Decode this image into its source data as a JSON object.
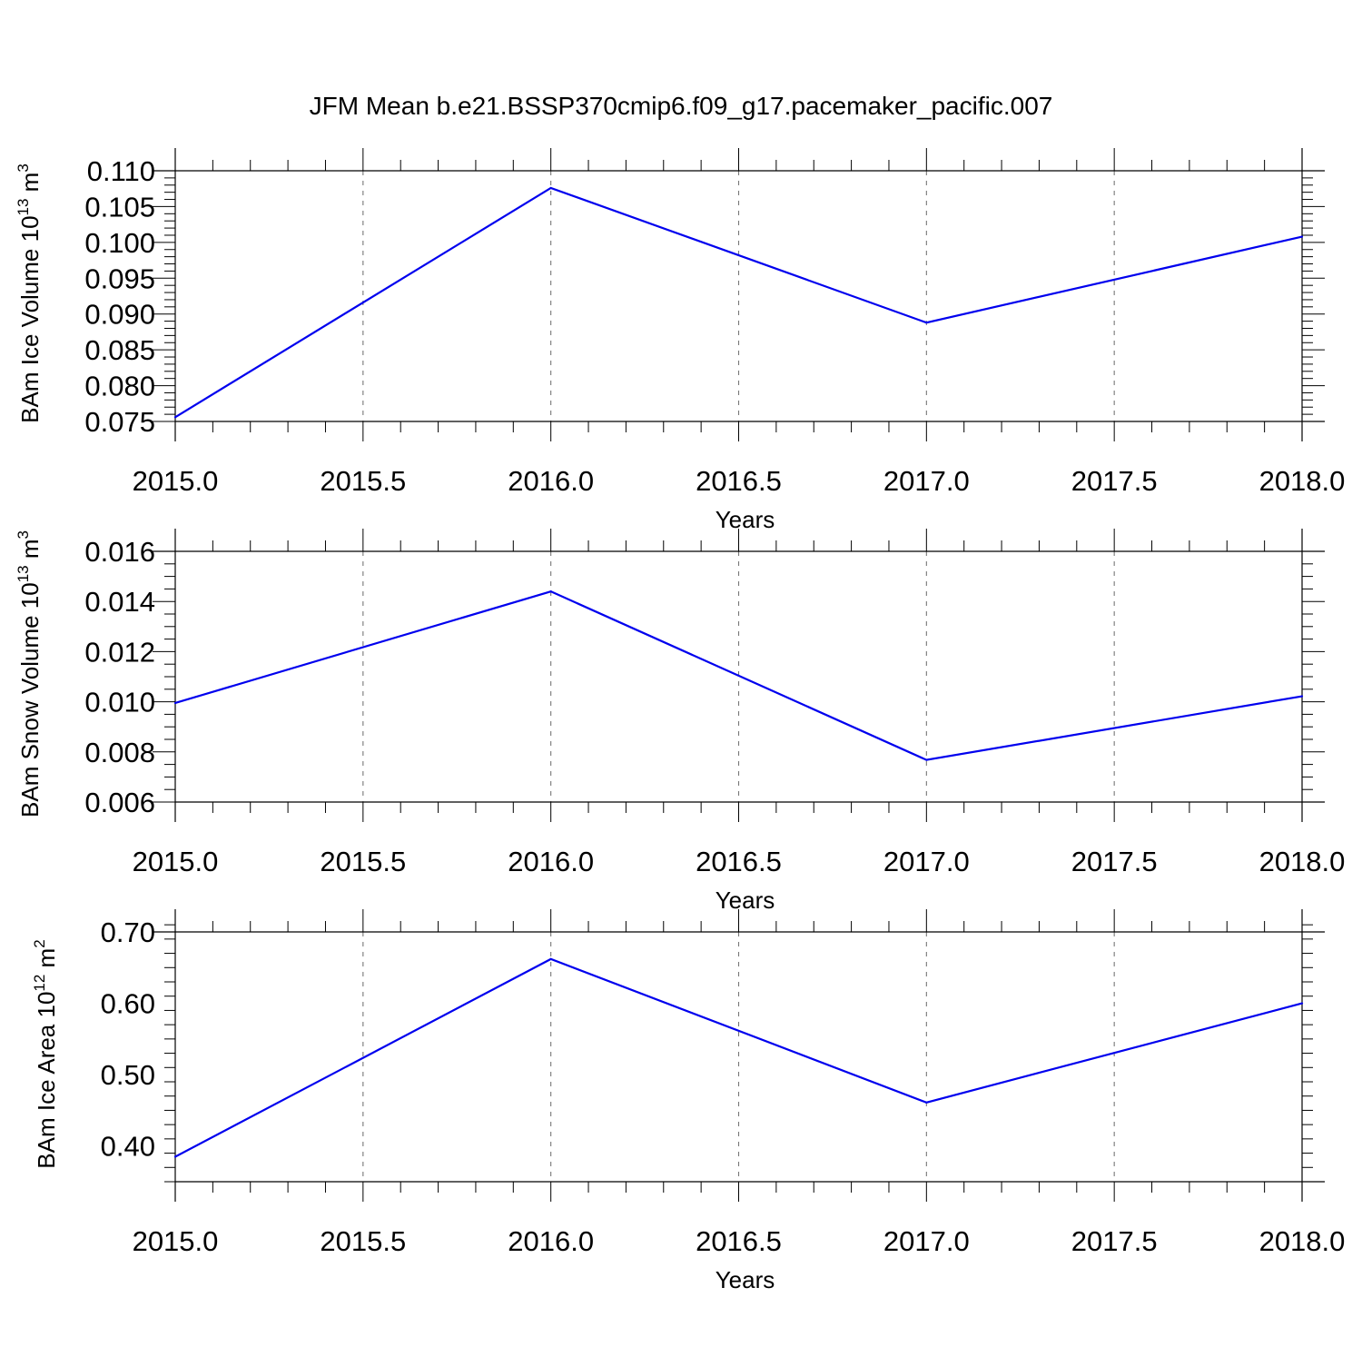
{
  "title": "JFM Mean b.e21.BSSP370cmip6.f09_g17.pacemaker_pacific.007",
  "series_color": "#0000ee",
  "chart_data": [
    {
      "type": "line",
      "ylabel_main": "BAm Ice Volume 10",
      "ylabel_sup": "13",
      "ylabel_unit": " m",
      "ylabel_unit_sup": "3",
      "xlabel": "Years",
      "xlim": [
        2015.0,
        2018.0
      ],
      "ylim": [
        0.075,
        0.11
      ],
      "xticks": [
        2015.0,
        2015.5,
        2016.0,
        2016.5,
        2017.0,
        2017.5,
        2018.0
      ],
      "xtick_labels": [
        "2015.0",
        "2015.5",
        "2016.0",
        "2016.5",
        "2017.0",
        "2017.5",
        "2018.0"
      ],
      "yticks": [
        0.075,
        0.08,
        0.085,
        0.09,
        0.095,
        0.1,
        0.105,
        0.11
      ],
      "ytick_labels": [
        "0.075",
        "0.080",
        "0.085",
        "0.090",
        "0.095",
        "0.100",
        "0.105",
        "0.110"
      ],
      "y_minor_step": 0.001,
      "x_minor_step": 0.1,
      "grid": "x-dashed",
      "x": [
        2015.0,
        2016.0,
        2017.0,
        2018.0
      ],
      "y": [
        0.0756,
        0.1076,
        0.0888,
        0.1008
      ]
    },
    {
      "type": "line",
      "ylabel_main": "BAm Snow Volume 10",
      "ylabel_sup": "13",
      "ylabel_unit": " m",
      "ylabel_unit_sup": "3",
      "xlabel": "Years",
      "xlim": [
        2015.0,
        2018.0
      ],
      "ylim": [
        0.006,
        0.016
      ],
      "xticks": [
        2015.0,
        2015.5,
        2016.0,
        2016.5,
        2017.0,
        2017.5,
        2018.0
      ],
      "xtick_labels": [
        "2015.0",
        "2015.5",
        "2016.0",
        "2016.5",
        "2017.0",
        "2017.5",
        "2018.0"
      ],
      "yticks": [
        0.006,
        0.008,
        0.01,
        0.012,
        0.014,
        0.016
      ],
      "ytick_labels": [
        "0.006",
        "0.008",
        "0.010",
        "0.012",
        "0.014",
        "0.016"
      ],
      "y_minor_step": 0.0005,
      "x_minor_step": 0.1,
      "grid": "x-dashed",
      "x": [
        2015.0,
        2016.0,
        2017.0,
        2018.0
      ],
      "y": [
        0.00995,
        0.0144,
        0.00768,
        0.01022
      ]
    },
    {
      "type": "line",
      "ylabel_main": "BAm Ice Area 10",
      "ylabel_sup": "12",
      "ylabel_unit": " m",
      "ylabel_unit_sup": "2",
      "xlabel": "Years",
      "xlim": [
        2015.0,
        2018.0
      ],
      "ylim": [
        0.35,
        0.7
      ],
      "xticks": [
        2015.0,
        2015.5,
        2016.0,
        2016.5,
        2017.0,
        2017.5,
        2018.0
      ],
      "xtick_labels": [
        "2015.0",
        "2015.5",
        "2016.0",
        "2016.5",
        "2017.0",
        "2017.5",
        "2018.0"
      ],
      "yticks": [
        0.4,
        0.5,
        0.6,
        0.7
      ],
      "ytick_labels": [
        "0.40",
        "0.50",
        "0.60",
        "0.70"
      ],
      "y_minor_step": 0.02,
      "x_minor_step": 0.1,
      "grid": "x-dashed",
      "x": [
        2015.0,
        2016.0,
        2017.0,
        2018.0
      ],
      "y": [
        0.385,
        0.662,
        0.461,
        0.6
      ]
    }
  ]
}
